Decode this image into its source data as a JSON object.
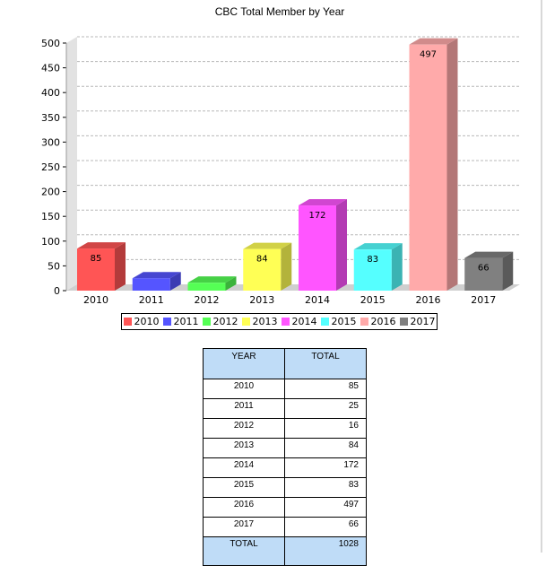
{
  "chart_data": {
    "type": "bar",
    "title": "CBC Total Member by Year",
    "categories": [
      "2010",
      "2011",
      "2012",
      "2013",
      "2014",
      "2015",
      "2016",
      "2017"
    ],
    "values": [
      85,
      25,
      16,
      84,
      172,
      83,
      497,
      66
    ],
    "value_labels": [
      "85",
      "",
      "",
      "84",
      "172",
      "83",
      "497",
      "66"
    ],
    "colors": [
      "#ff5555",
      "#5555ff",
      "#55ff55",
      "#ffff55",
      "#ff55ff",
      "#55ffff",
      "#ffaaaa",
      "#808080"
    ],
    "yticks": [
      0,
      50,
      100,
      150,
      200,
      250,
      300,
      350,
      400,
      450,
      500
    ],
    "ylim": [
      0,
      500
    ],
    "grid": true,
    "legend_position": "bottom",
    "style": "3d"
  },
  "table": {
    "headers": [
      "YEAR",
      "TOTAL"
    ],
    "rows": [
      {
        "year": "2010",
        "total": "85"
      },
      {
        "year": "2011",
        "total": "25"
      },
      {
        "year": "2012",
        "total": "16"
      },
      {
        "year": "2013",
        "total": "84"
      },
      {
        "year": "2014",
        "total": "172"
      },
      {
        "year": "2015",
        "total": "83"
      },
      {
        "year": "2016",
        "total": "497"
      },
      {
        "year": "2017",
        "total": "66"
      }
    ],
    "footer": {
      "label": "TOTAL",
      "total": "1028"
    }
  }
}
